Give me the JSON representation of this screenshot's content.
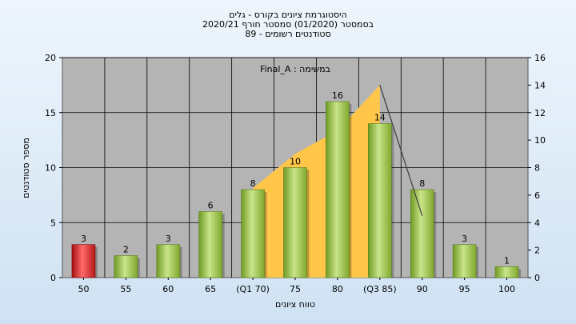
{
  "chart_data": {
    "type": "bar",
    "title_lines": [
      "היסטוגרמת ציונים בקורס - גלים",
      "בסמסטר  (01/2020)  סמסטר חורף 2020/21",
      "סטודנטים רשומים - 89"
    ],
    "inner_title": "Final_A : במשימה",
    "xlabel": "טווח ציונים",
    "ylabel": "מספר סטודנטים",
    "categories": [
      "50",
      "55",
      "60",
      "65",
      "(Q1 70)",
      "75",
      "80",
      "(Q3 85)",
      "90",
      "95",
      "100"
    ],
    "values": [
      3,
      2,
      3,
      6,
      8,
      10,
      16,
      14,
      8,
      3,
      1
    ],
    "bar_colors": [
      "#e02020",
      "#9ac23c",
      "#9ac23c",
      "#9ac23c",
      "#9ac23c",
      "#9ac23c",
      "#9ac23c",
      "#9ac23c",
      "#9ac23c",
      "#9ac23c",
      "#9ac23c"
    ],
    "ylim_left": [
      0,
      20
    ],
    "yticks_left": [
      0,
      5,
      10,
      15,
      20
    ],
    "ylim_right": [
      0,
      16
    ],
    "yticks_right": [
      0,
      2,
      4,
      6,
      8,
      10,
      12,
      14,
      16
    ],
    "grid": true,
    "area": {
      "color": "#ffc64a",
      "points": [
        [
          4,
          6.5
        ],
        [
          5,
          9
        ],
        [
          6,
          10.7
        ],
        [
          7,
          14
        ]
      ]
    },
    "line": {
      "color": "#444444",
      "points": [
        [
          7,
          14
        ],
        [
          8,
          4.5
        ]
      ]
    },
    "plot_background": "#b4b4b4"
  }
}
